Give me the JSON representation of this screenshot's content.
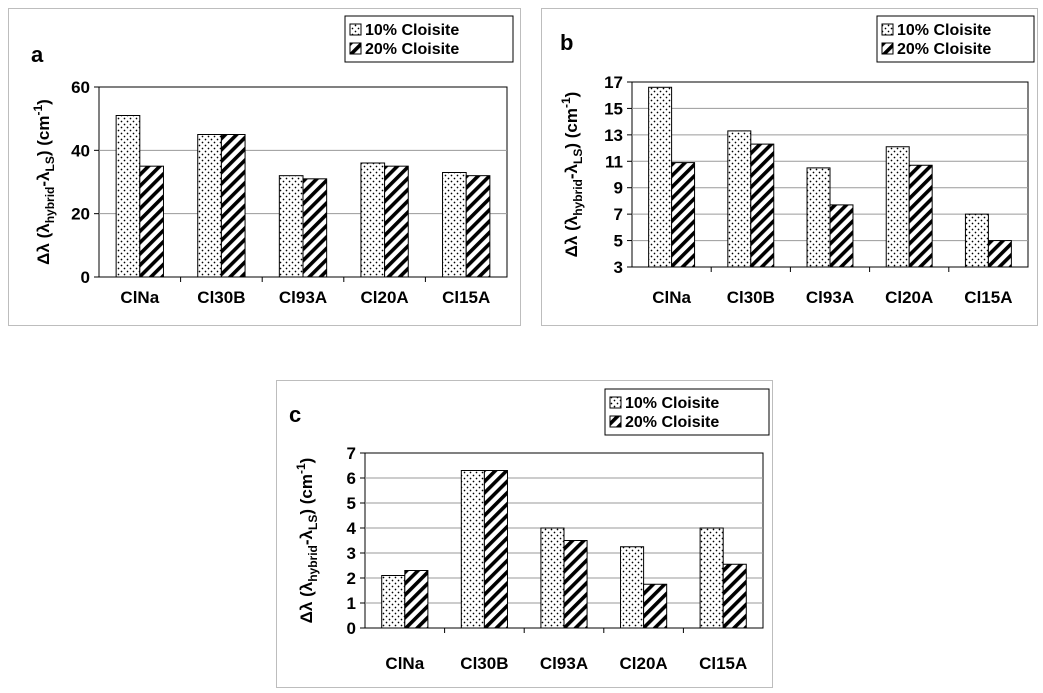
{
  "chart_data": [
    {
      "type": "bar",
      "title": "a",
      "categories": [
        "ClNa",
        "Cl30B",
        "Cl93A",
        "Cl20A",
        "Cl15A"
      ],
      "series": [
        {
          "name": "10% Cloisite",
          "values": [
            51,
            45,
            32,
            36,
            33
          ]
        },
        {
          "name": "20% Cloisite",
          "values": [
            35,
            45,
            31,
            35,
            32
          ]
        }
      ],
      "ylabel": {
        "prefix": "Δλ (λ",
        "sub1": "hybrid",
        "mid": "-λ",
        "sub2": "LS",
        "post": ") (cm",
        "sup": "-1",
        "end": ")"
      },
      "ylim": [
        0,
        60
      ],
      "yticks": [
        "0",
        "20",
        "40",
        "60"
      ],
      "grid": true,
      "legend_position": "top-right"
    },
    {
      "type": "bar",
      "title": "b",
      "categories": [
        "ClNa",
        "Cl30B",
        "Cl93A",
        "Cl20A",
        "Cl15A"
      ],
      "series": [
        {
          "name": "10% Cloisite",
          "values": [
            16.6,
            13.3,
            10.5,
            12.1,
            7.0
          ]
        },
        {
          "name": "20% Cloisite",
          "values": [
            10.9,
            12.3,
            7.7,
            10.7,
            5.0
          ]
        }
      ],
      "ylabel": {
        "prefix": "Δλ (λ",
        "sub1": "hybrid",
        "mid": "-λ",
        "sub2": "LS",
        "post": ") (cm",
        "sup": "-1",
        "end": ")"
      },
      "ylim": [
        3,
        17
      ],
      "yticks": [
        "3",
        "5",
        "7",
        "9",
        "11",
        "13",
        "15",
        "17"
      ],
      "grid": true,
      "legend_position": "top-right"
    },
    {
      "type": "bar",
      "title": "c",
      "categories": [
        "ClNa",
        "Cl30B",
        "Cl93A",
        "Cl20A",
        "Cl15A"
      ],
      "series": [
        {
          "name": "10% Cloisite",
          "values": [
            2.1,
            6.3,
            4.0,
            3.25,
            4.0
          ]
        },
        {
          "name": "20% Cloisite",
          "values": [
            2.3,
            6.3,
            3.5,
            1.75,
            2.55
          ]
        }
      ],
      "ylabel": {
        "prefix": "Δλ (λ",
        "sub1": "hybrid",
        "mid": "-λ",
        "sub2": "LS",
        "post": ") (cm",
        "sup": "-1",
        "end": ")"
      },
      "ylim": [
        0,
        7
      ],
      "yticks": [
        "0",
        "1",
        "2",
        "3",
        "4",
        "5",
        "6",
        "7"
      ],
      "grid": true,
      "legend_position": "top-right"
    }
  ]
}
